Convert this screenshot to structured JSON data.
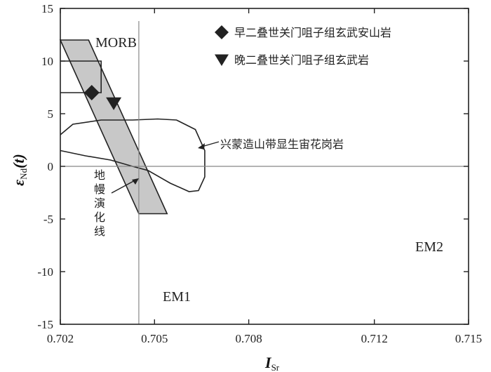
{
  "chart_data": {
    "type": "scatter",
    "x_label": {
      "main": "I",
      "sub": "Sr"
    },
    "y_label": {
      "main": "ε",
      "sub": "Nd",
      "rest": "(t)"
    },
    "xlim": [
      0.702,
      0.715
    ],
    "ylim": [
      -15,
      15
    ],
    "x_ticks": [
      0.702,
      0.705,
      0.708,
      0.712,
      0.715
    ],
    "x_tick_labels": [
      "0.702",
      "0.705",
      "0.708",
      "0.712",
      "0.715"
    ],
    "y_ticks": [
      15,
      10,
      5,
      0,
      -5,
      -10,
      -15
    ],
    "y_tick_labels": [
      "15",
      "10",
      "5",
      "0",
      "-5",
      "-10",
      "-15"
    ],
    "reference_lines": {
      "x": 0.7045,
      "y": 0
    },
    "series": [
      {
        "name": "早二叠世关门咀子组玄武安山岩",
        "marker": "diamond",
        "points": [
          [
            0.703,
            7.0
          ]
        ]
      },
      {
        "name": "晚二叠世关门咀子组玄武岩",
        "marker": "triangle-down",
        "points": [
          [
            0.7037,
            6.0
          ]
        ]
      }
    ],
    "regions": {
      "morb": {
        "label": "MORB",
        "x": [
          0.702,
          0.7033
        ],
        "y": [
          7.0,
          10.0
        ]
      },
      "mantle_array": {
        "label": "地幔演化线",
        "polygon": [
          [
            0.702,
            12.0
          ],
          [
            0.7029,
            12.0
          ],
          [
            0.7054,
            -4.5
          ],
          [
            0.7045,
            -4.5
          ]
        ]
      },
      "granite": {
        "label": "兴蒙造山带显生宙花岗岩",
        "polygon": [
          [
            0.702,
            3.0
          ],
          [
            0.7024,
            4.0
          ],
          [
            0.7033,
            4.4
          ],
          [
            0.7043,
            4.4
          ],
          [
            0.7051,
            4.5
          ],
          [
            0.7057,
            4.4
          ],
          [
            0.7063,
            3.5
          ],
          [
            0.7066,
            1.5
          ],
          [
            0.7066,
            -1.0
          ],
          [
            0.7064,
            -2.3
          ],
          [
            0.7061,
            -2.4
          ],
          [
            0.7055,
            -1.6
          ],
          [
            0.7048,
            -0.4
          ],
          [
            0.7043,
            0.0
          ],
          [
            0.7036,
            0.6
          ],
          [
            0.7028,
            1.0
          ],
          [
            0.702,
            1.5
          ]
        ]
      }
    },
    "annotations": {
      "em1": "EM1",
      "em2": "EM2"
    },
    "legend": "top-right"
  }
}
